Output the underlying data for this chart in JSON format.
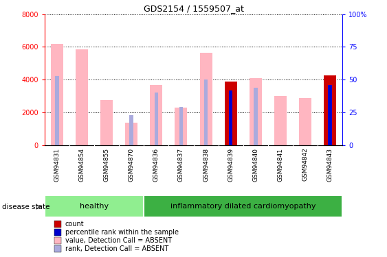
{
  "title": "GDS2154 / 1559507_at",
  "samples": [
    "GSM94831",
    "GSM94854",
    "GSM94855",
    "GSM94870",
    "GSM94836",
    "GSM94837",
    "GSM94838",
    "GSM94839",
    "GSM94840",
    "GSM94841",
    "GSM94842",
    "GSM94843"
  ],
  "value_absent": [
    6200,
    5850,
    2750,
    1380,
    3680,
    2280,
    5650,
    0,
    4100,
    3020,
    2870,
    0
  ],
  "rank_absent_pct": [
    53,
    0,
    0,
    23,
    40,
    29,
    50,
    0,
    44,
    0,
    0,
    46
  ],
  "count_present": [
    0,
    0,
    0,
    0,
    0,
    0,
    0,
    3870,
    0,
    0,
    0,
    4250
  ],
  "rank_present_pct": [
    0,
    0,
    0,
    0,
    0,
    0,
    0,
    42,
    0,
    0,
    0,
    46
  ],
  "groups": [
    {
      "label": "healthy",
      "start": 0,
      "end": 4,
      "color": "#90EE90"
    },
    {
      "label": "inflammatory dilated cardiomyopathy",
      "start": 4,
      "end": 12,
      "color": "#3CB043"
    }
  ],
  "ylim_left": [
    0,
    8000
  ],
  "ylim_right": [
    0,
    100
  ],
  "left_yticks": [
    0,
    2000,
    4000,
    6000,
    8000
  ],
  "right_yticks": [
    0,
    25,
    50,
    75,
    100
  ],
  "left_tick_labels": [
    "0",
    "2000",
    "4000",
    "6000",
    "8000"
  ],
  "right_tick_labels": [
    "0",
    "25",
    "50",
    "75",
    "100%"
  ],
  "color_value_absent": "#FFB6C1",
  "color_rank_absent": "#AAAADD",
  "color_count_present": "#CC0000",
  "color_rank_present": "#0000CC",
  "pink_bar_width": 0.5,
  "blue_bar_width": 0.15,
  "disease_state_label": "disease state",
  "legend_items": [
    {
      "label": "count",
      "color": "#CC0000"
    },
    {
      "label": "percentile rank within the sample",
      "color": "#0000CC"
    },
    {
      "label": "value, Detection Call = ABSENT",
      "color": "#FFB6C1"
    },
    {
      "label": "rank, Detection Call = ABSENT",
      "color": "#AAAADD"
    }
  ]
}
